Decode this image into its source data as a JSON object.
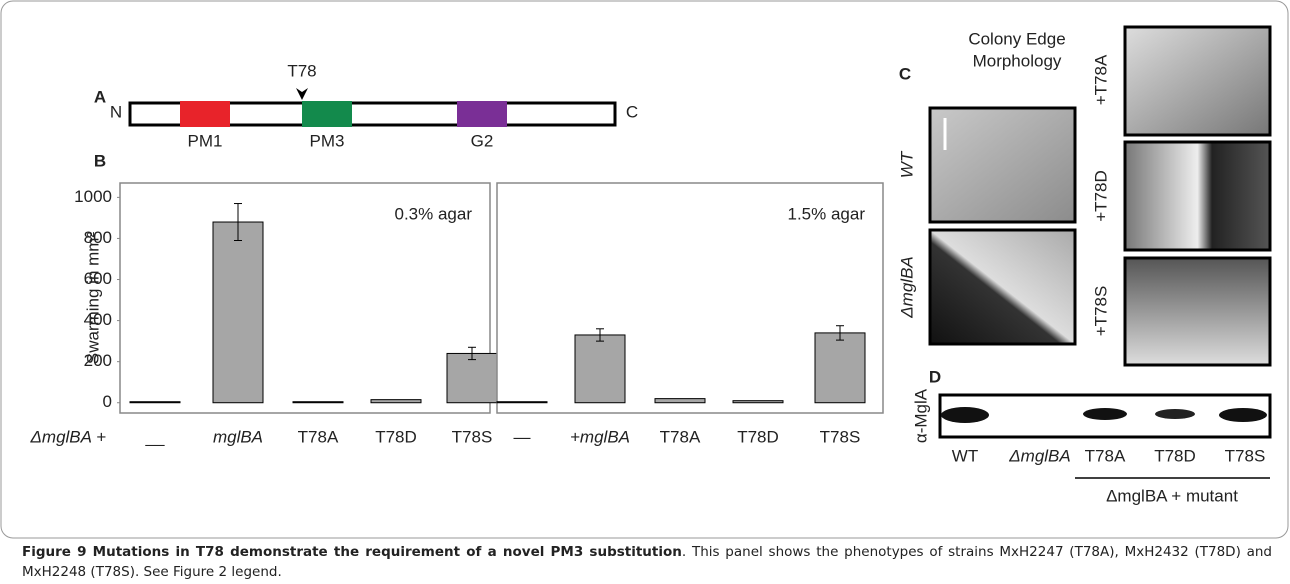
{
  "panel_a": {
    "label": "A",
    "n_term": "N",
    "c_term": "C",
    "site": "T78",
    "domains": [
      {
        "name": "PM1",
        "color": "#e8232a"
      },
      {
        "name": "PM3",
        "color": "#138a4c"
      },
      {
        "name": "G2",
        "color": "#7a2f96"
      }
    ]
  },
  "panel_b_label": "B",
  "chart_data": [
    {
      "type": "bar",
      "annotation": "0.3% agar",
      "y_label": "Swarming in mm²",
      "category_prefix": "ΔmglBA +",
      "categories": [
        "__",
        "mglBA",
        "T78A",
        "T78D",
        "T78S"
      ],
      "values": [
        5,
        880,
        5,
        15,
        240
      ],
      "errors": [
        null,
        90,
        null,
        null,
        30
      ],
      "color": "#a6a6a6",
      "ylim": [
        -50,
        1070
      ],
      "yticks": [
        0,
        200,
        400,
        600,
        800,
        1000
      ]
    },
    {
      "type": "bar",
      "annotation": "1.5% agar",
      "categories": [
        "—",
        "+mglBA",
        "T78A",
        "T78D",
        "T78S"
      ],
      "values": [
        5,
        330,
        20,
        10,
        340
      ],
      "errors": [
        null,
        30,
        null,
        null,
        35
      ],
      "color": "#a6a6a6",
      "ylim": [
        -50,
        1070
      ]
    }
  ],
  "panel_c": {
    "label": "C",
    "title": [
      "Colony Edge",
      "Morphology"
    ],
    "images": [
      "WT",
      "ΔmglBA",
      "+T78A",
      "+T78D",
      "+T78S"
    ]
  },
  "panel_d": {
    "label": "D",
    "antibody": "α-MglA",
    "lanes": [
      "WT",
      "ΔmglBA",
      "T78A",
      "T78D",
      "T78S"
    ],
    "bracket": "ΔmglBA + mutant"
  },
  "caption": {
    "title": "Figure 9 Mutations in T78 demonstrate the requirement of a novel PM3 substitution",
    "text": ". This panel shows the phenotypes of strains MxH2247 (T78A), MxH2432 (T78D) and MxH2248 (T78S). See Figure 2 legend."
  }
}
